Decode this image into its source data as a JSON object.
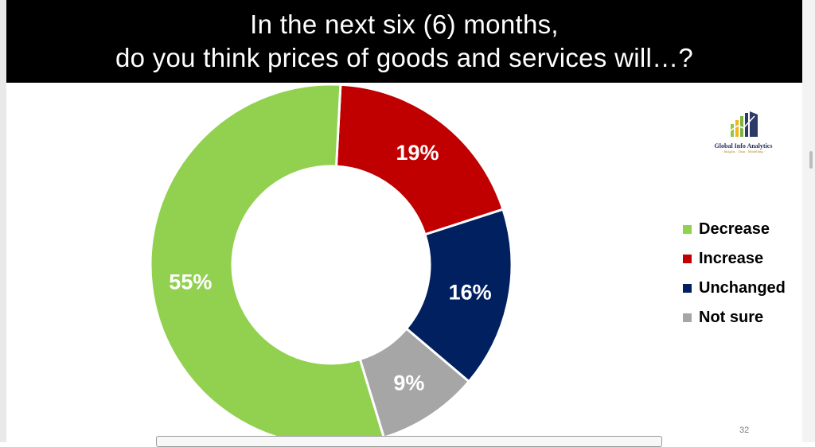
{
  "slide": {
    "title_lines": [
      "In the next six (6) months,",
      "do you think prices of goods and services will…?"
    ],
    "page_number": "32"
  },
  "logo": {
    "name": "Global Info Analytics",
    "tagline": "· Insights · Data · Modelling ·",
    "icon": "bar-chart-growth-icon"
  },
  "colors": {
    "background": "#ffffff",
    "title_bar": "#000000",
    "title_text": "#ffffff"
  },
  "chart_data": {
    "type": "pie",
    "donut": true,
    "title": "In the next six (6) months, do you think prices of goods and services will…?",
    "slices": [
      {
        "label": "Decrease",
        "value": 55,
        "display": "55%",
        "color": "#92d050"
      },
      {
        "label": "Increase",
        "value": 19,
        "display": "19%",
        "color": "#c00000"
      },
      {
        "label": "Unchanged",
        "value": 16,
        "display": "16%",
        "color": "#002060"
      },
      {
        "label": "Not sure",
        "value": 9,
        "display": "9%",
        "color": "#a6a6a6"
      }
    ],
    "start_order": [
      "Increase",
      "Unchanged",
      "Not sure",
      "Decrease"
    ],
    "legend": "right",
    "data_labels": true
  }
}
